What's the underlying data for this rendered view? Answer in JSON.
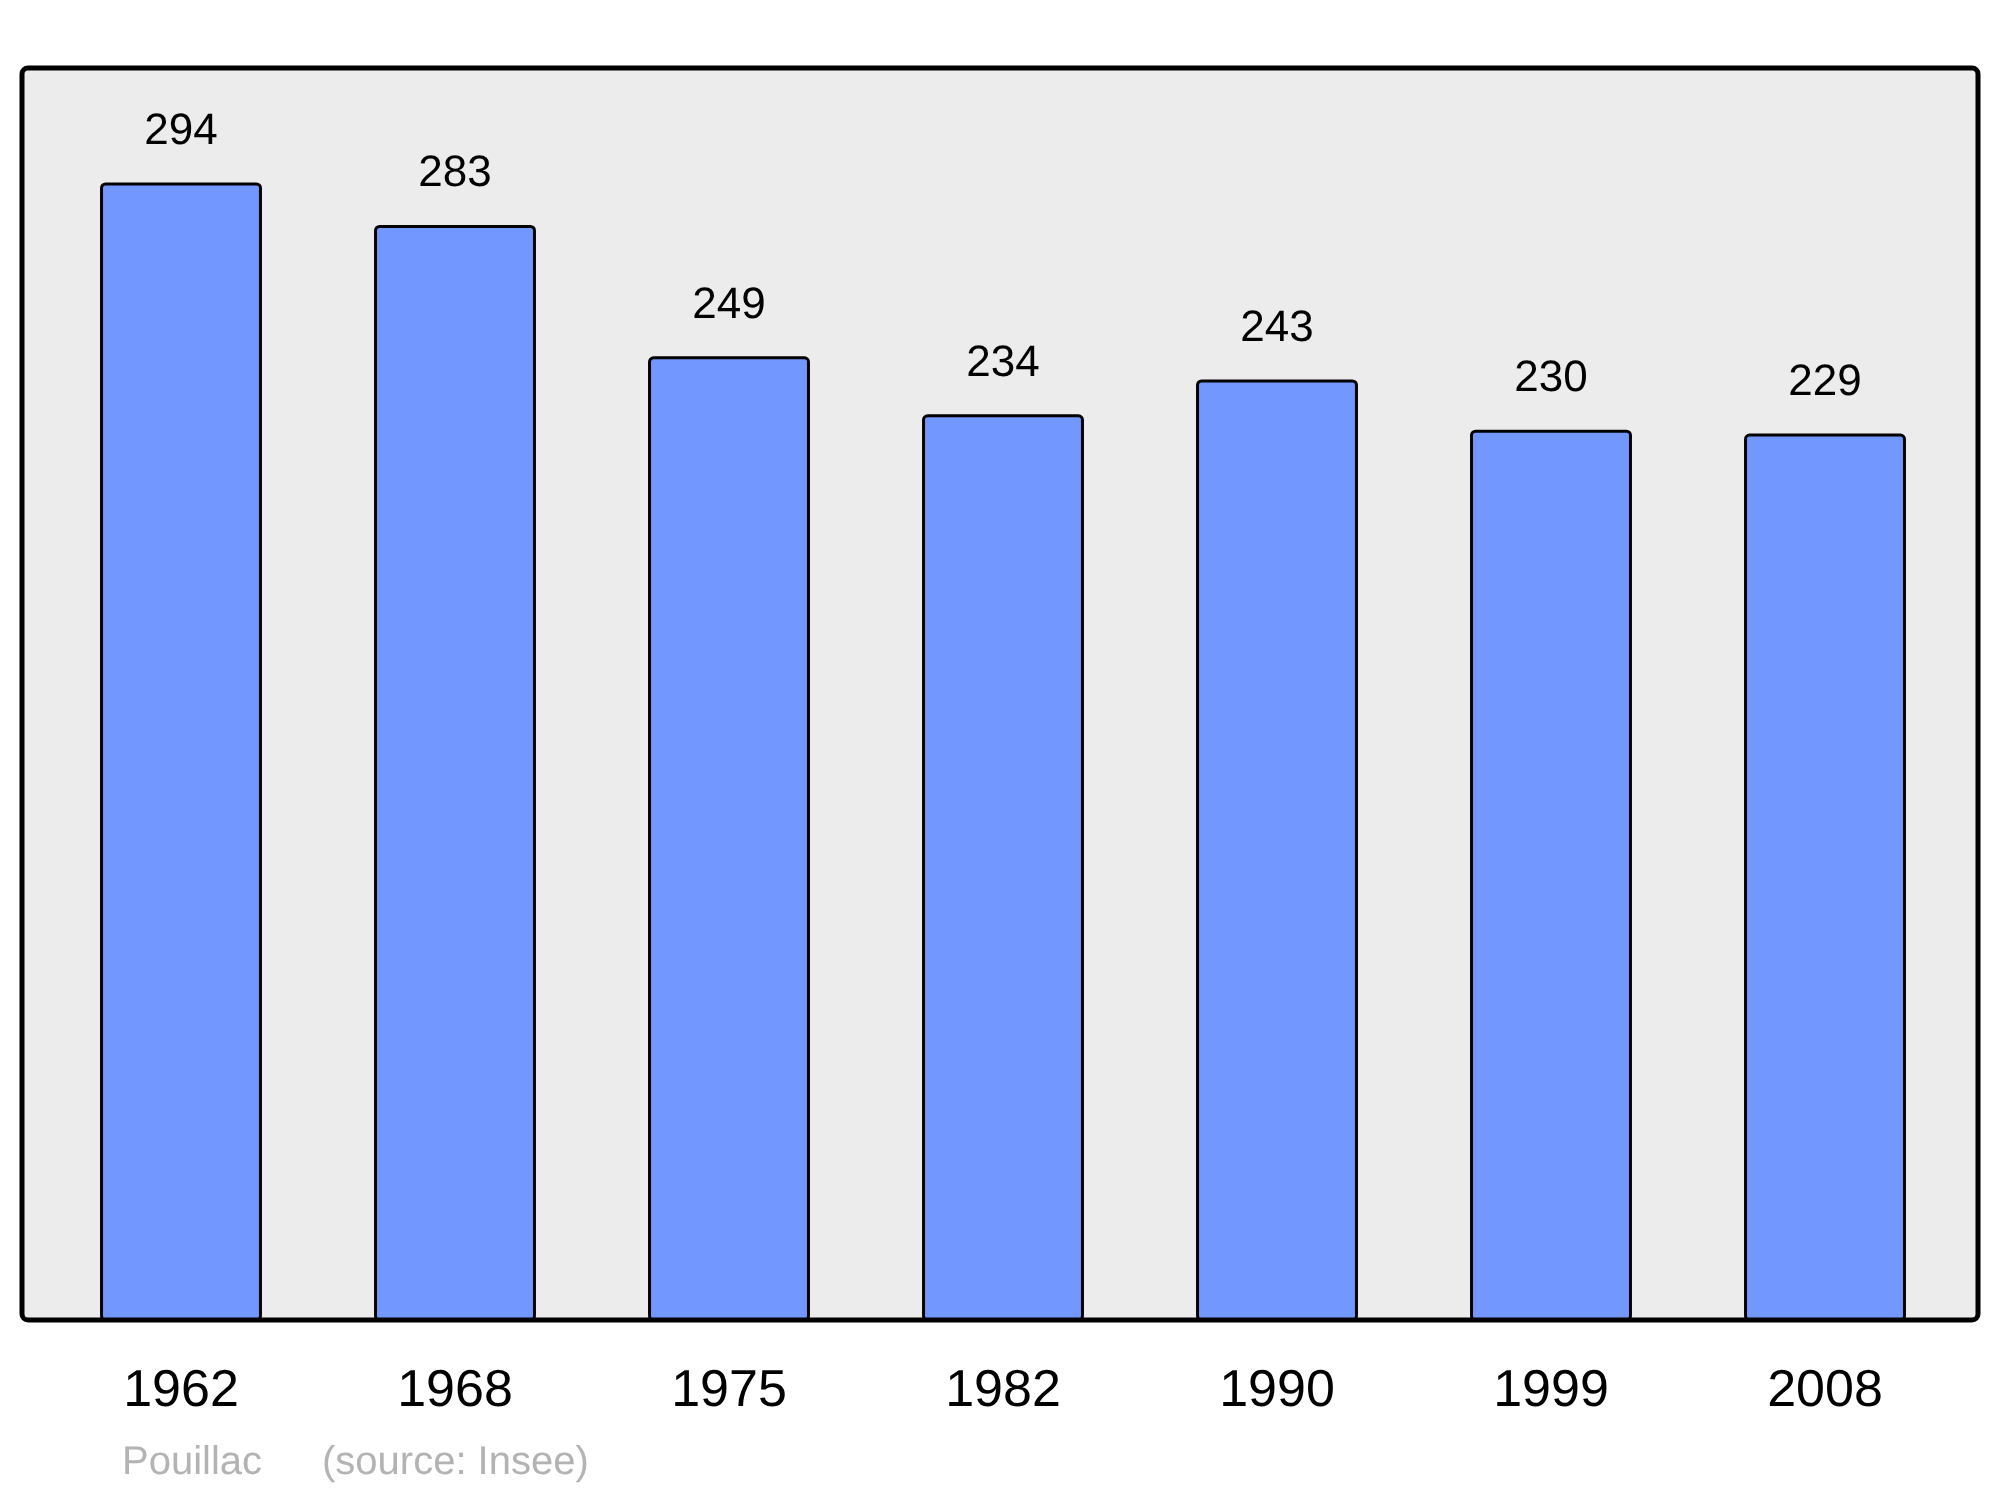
{
  "chart_data": {
    "type": "bar",
    "categories": [
      "1962",
      "1968",
      "1975",
      "1982",
      "1990",
      "1999",
      "2008"
    ],
    "values": [
      294,
      283,
      249,
      234,
      243,
      230,
      229
    ],
    "color": "#7298ff",
    "ylim": [
      0,
      324
    ],
    "data_labels": true,
    "tick_labels": "x",
    "annotations": [
      "Pouillac",
      "(source: Insee)"
    ]
  }
}
